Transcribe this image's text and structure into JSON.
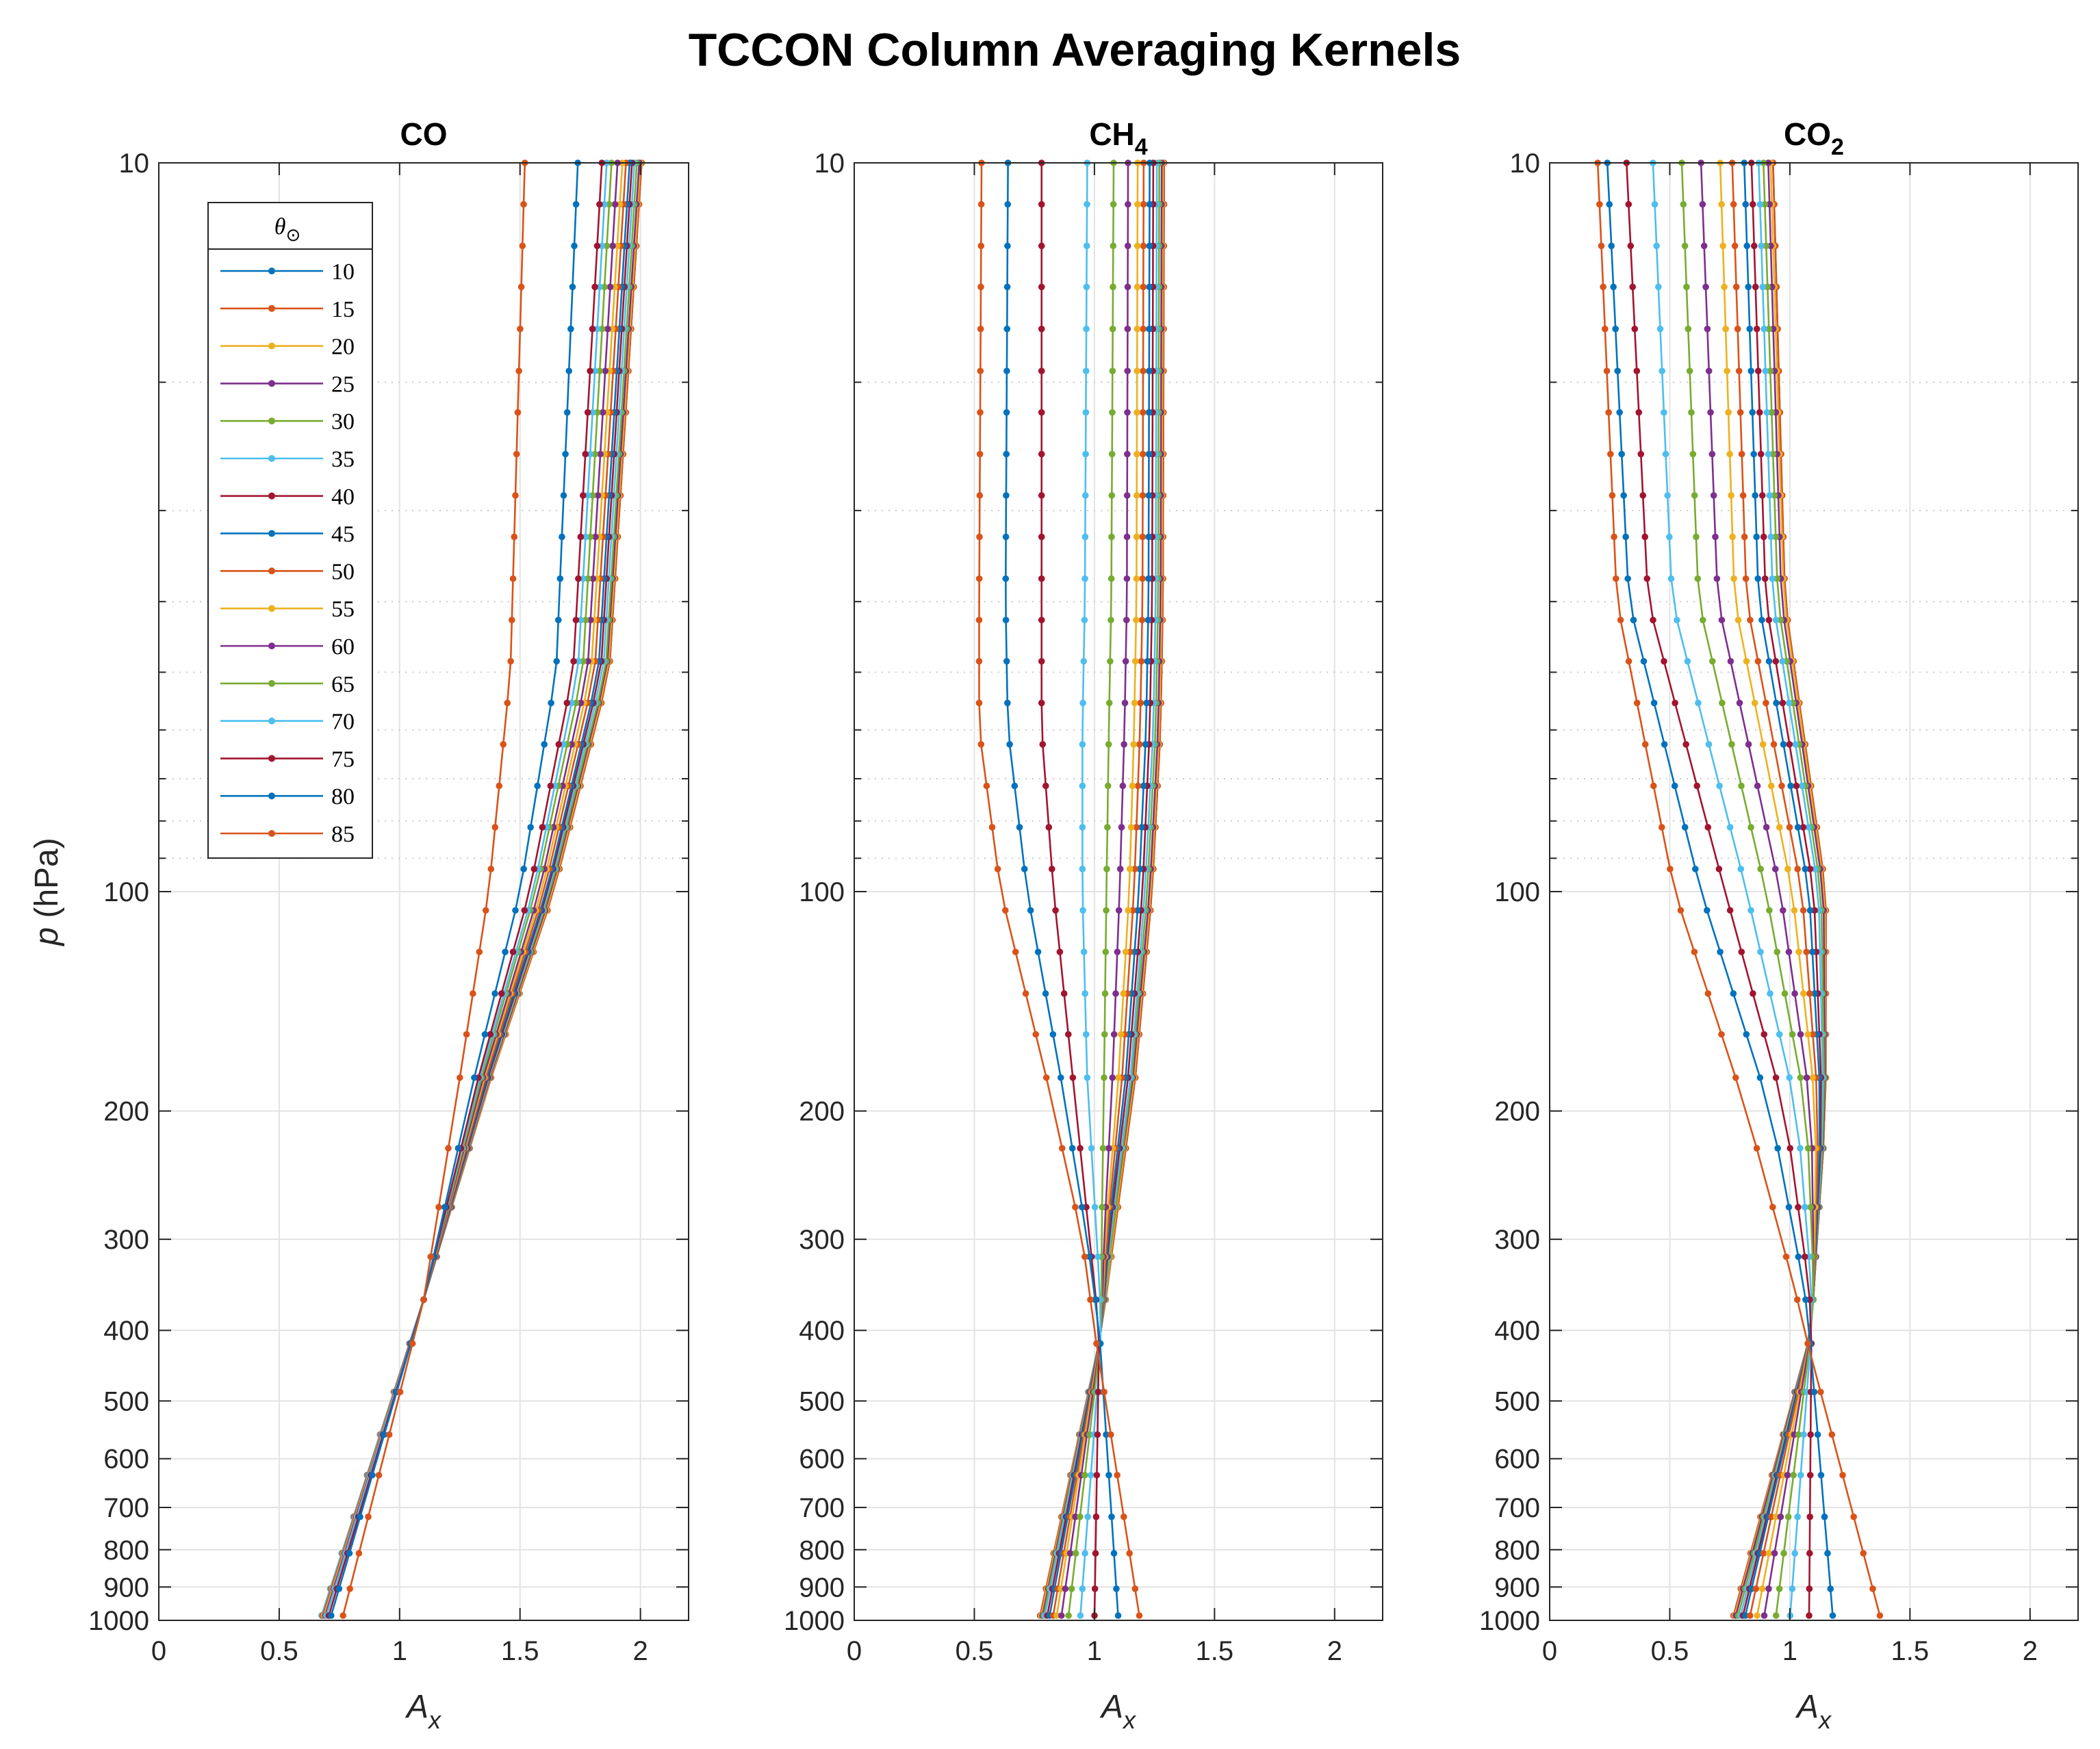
{
  "figure": {
    "title": "TCCON Column Averaging Kernels",
    "ylabel_italic": "p",
    "ylabel_rest": " (hPa)",
    "xlabel_main": "A",
    "xlabel_sub": "x"
  },
  "legend": {
    "title": "θ",
    "title_sub": "⊙"
  },
  "chart_data": [
    {
      "type": "line",
      "title": "CO",
      "xlim": [
        0,
        2.2
      ],
      "ylim": [
        10,
        1000
      ],
      "y_scale": "log-reversed",
      "grid": true,
      "legend_position": "top-left",
      "x_ticks": [
        "0",
        "0.5",
        "1",
        "1.5",
        "2"
      ],
      "y_ticks": [
        "10",
        "100",
        "200",
        "300",
        "400",
        "500",
        "600",
        "700",
        "800",
        "900",
        "1000"
      ],
      "pressure_levels": [
        10,
        11.4,
        13,
        14.8,
        16.9,
        19.3,
        22,
        25.1,
        28.6,
        32.6,
        37.2,
        42.4,
        48.3,
        55.1,
        62.8,
        71.6,
        81.6,
        93.1,
        106.1,
        121,
        138,
        157,
        180,
        225,
        271,
        317,
        363,
        417,
        486,
        556,
        632,
        721,
        809,
        905,
        985
      ],
      "anchors_p": [
        10,
        50,
        100,
        180,
        363,
        1000
      ],
      "series": [
        {
          "name": "10",
          "anchors": [
            2.005,
            1.87,
            1.64,
            1.38,
            1.1,
            0.67
          ]
        },
        {
          "name": "15",
          "anchors": [
            2.005,
            1.87,
            1.64,
            1.38,
            1.1,
            0.67
          ]
        },
        {
          "name": "20",
          "anchors": [
            2.0,
            1.865,
            1.635,
            1.378,
            1.1,
            0.67
          ]
        },
        {
          "name": "25",
          "anchors": [
            1.995,
            1.86,
            1.63,
            1.375,
            1.1,
            0.67
          ]
        },
        {
          "name": "30",
          "anchors": [
            1.985,
            1.855,
            1.625,
            1.372,
            1.1,
            0.67
          ]
        },
        {
          "name": "35",
          "anchors": [
            1.975,
            1.845,
            1.62,
            1.37,
            1.1,
            0.67
          ]
        },
        {
          "name": "40",
          "anchors": [
            1.965,
            1.835,
            1.615,
            1.367,
            1.1,
            0.675
          ]
        },
        {
          "name": "45",
          "anchors": [
            1.955,
            1.825,
            1.61,
            1.362,
            1.1,
            0.675
          ]
        },
        {
          "name": "50",
          "anchors": [
            1.94,
            1.81,
            1.6,
            1.357,
            1.1,
            0.675
          ]
        },
        {
          "name": "55",
          "anchors": [
            1.925,
            1.795,
            1.59,
            1.352,
            1.1,
            0.68
          ]
        },
        {
          "name": "60",
          "anchors": [
            1.905,
            1.78,
            1.58,
            1.347,
            1.1,
            0.685
          ]
        },
        {
          "name": "65",
          "anchors": [
            1.88,
            1.76,
            1.565,
            1.34,
            1.1,
            0.69
          ]
        },
        {
          "name": "70",
          "anchors": [
            1.86,
            1.74,
            1.555,
            1.333,
            1.1,
            0.69
          ]
        },
        {
          "name": "75",
          "anchors": [
            1.84,
            1.72,
            1.54,
            1.327,
            1.1,
            0.7
          ]
        },
        {
          "name": "80",
          "anchors": [
            1.74,
            1.65,
            1.5,
            1.31,
            1.1,
            0.71
          ]
        },
        {
          "name": "85",
          "anchors": [
            1.52,
            1.46,
            1.37,
            1.25,
            1.1,
            0.76
          ]
        }
      ]
    },
    {
      "type": "line",
      "title": "CH",
      "title_sub": "4",
      "xlim": [
        0,
        2.2
      ],
      "ylim": [
        10,
        1000
      ],
      "y_scale": "log-reversed",
      "grid": true,
      "x_ticks": [
        "0",
        "0.5",
        "1",
        "1.5",
        "2"
      ],
      "y_ticks": [
        "10",
        "100",
        "200",
        "300",
        "400",
        "500",
        "600",
        "700",
        "800",
        "900",
        "1000"
      ],
      "pressure_levels": [
        10,
        11.4,
        13,
        14.8,
        16.9,
        19.3,
        22,
        25.1,
        28.6,
        32.6,
        37.2,
        42.4,
        48.3,
        55.1,
        62.8,
        71.6,
        81.6,
        93.1,
        106.1,
        121,
        138,
        157,
        180,
        225,
        271,
        317,
        363,
        417,
        486,
        556,
        632,
        721,
        809,
        905,
        985
      ],
      "anchors_p": [
        10,
        40,
        60,
        100,
        180,
        300,
        400,
        1000
      ],
      "series": [
        {
          "name": "10",
          "anchors": [
            1.29,
            1.285,
            1.275,
            1.24,
            1.17,
            1.08,
            1.03,
            0.77
          ]
        },
        {
          "name": "15",
          "anchors": [
            1.29,
            1.285,
            1.275,
            1.24,
            1.17,
            1.08,
            1.03,
            0.77
          ]
        },
        {
          "name": "20",
          "anchors": [
            1.285,
            1.28,
            1.27,
            1.235,
            1.165,
            1.075,
            1.03,
            0.775
          ]
        },
        {
          "name": "25",
          "anchors": [
            1.28,
            1.275,
            1.265,
            1.23,
            1.16,
            1.07,
            1.03,
            0.78
          ]
        },
        {
          "name": "30",
          "anchors": [
            1.27,
            1.265,
            1.255,
            1.22,
            1.155,
            1.07,
            1.03,
            0.785
          ]
        },
        {
          "name": "35",
          "anchors": [
            1.26,
            1.255,
            1.245,
            1.21,
            1.15,
            1.065,
            1.03,
            0.79
          ]
        },
        {
          "name": "40",
          "anchors": [
            1.245,
            1.24,
            1.23,
            1.2,
            1.14,
            1.06,
            1.03,
            0.8
          ]
        },
        {
          "name": "45",
          "anchors": [
            1.23,
            1.225,
            1.215,
            1.185,
            1.13,
            1.055,
            1.03,
            0.81
          ]
        },
        {
          "name": "50",
          "anchors": [
            1.205,
            1.2,
            1.19,
            1.165,
            1.115,
            1.05,
            1.03,
            0.825
          ]
        },
        {
          "name": "55",
          "anchors": [
            1.18,
            1.175,
            1.165,
            1.145,
            1.1,
            1.045,
            1.03,
            0.84
          ]
        },
        {
          "name": "60",
          "anchors": [
            1.14,
            1.135,
            1.125,
            1.105,
            1.075,
            1.04,
            1.03,
            0.86
          ]
        },
        {
          "name": "65",
          "anchors": [
            1.08,
            1.07,
            1.06,
            1.05,
            1.04,
            1.03,
            1.03,
            0.89
          ]
        },
        {
          "name": "70",
          "anchors": [
            0.97,
            0.96,
            0.95,
            0.95,
            0.97,
            1.01,
            1.03,
            0.94
          ]
        },
        {
          "name": "75",
          "anchors": [
            0.78,
            0.78,
            0.78,
            0.83,
            0.91,
            0.98,
            1.02,
            1.0
          ]
        },
        {
          "name": "80",
          "anchors": [
            0.64,
            0.63,
            0.64,
            0.72,
            0.86,
            0.97,
            1.02,
            1.1
          ]
        },
        {
          "name": "85",
          "anchors": [
            0.53,
            0.52,
            0.52,
            0.61,
            0.8,
            0.95,
            1.0,
            1.19
          ]
        }
      ]
    },
    {
      "type": "line",
      "title": "CO",
      "title_sub": "2",
      "xlim": [
        0,
        2.2
      ],
      "ylim": [
        10,
        1000
      ],
      "y_scale": "log-reversed",
      "grid": true,
      "x_ticks": [
        "0",
        "0.5",
        "1",
        "1.5",
        "2"
      ],
      "y_ticks": [
        "10",
        "100",
        "200",
        "300",
        "400",
        "500",
        "600",
        "700",
        "800",
        "900",
        "1000"
      ],
      "pressure_levels": [
        10,
        11.4,
        13,
        14.8,
        16.9,
        19.3,
        22,
        25.1,
        28.6,
        32.6,
        37.2,
        42.4,
        48.3,
        55.1,
        62.8,
        71.6,
        81.6,
        93.1,
        106.1,
        121,
        138,
        157,
        180,
        225,
        271,
        317,
        363,
        417,
        486,
        556,
        632,
        721,
        809,
        905,
        985
      ],
      "anchors_p": [
        10,
        40,
        100,
        200,
        350,
        400,
        1000
      ],
      "series": [
        {
          "name": "10",
          "anchors": [
            0.93,
            0.98,
            1.15,
            1.15,
            1.1,
            1.09,
            0.76
          ]
        },
        {
          "name": "15",
          "anchors": [
            0.93,
            0.98,
            1.15,
            1.15,
            1.1,
            1.09,
            0.76
          ]
        },
        {
          "name": "20",
          "anchors": [
            0.92,
            0.975,
            1.145,
            1.15,
            1.1,
            1.09,
            0.765
          ]
        },
        {
          "name": "25",
          "anchors": [
            0.91,
            0.965,
            1.14,
            1.148,
            1.1,
            1.09,
            0.77
          ]
        },
        {
          "name": "30",
          "anchors": [
            0.89,
            0.95,
            1.13,
            1.145,
            1.1,
            1.09,
            0.78
          ]
        },
        {
          "name": "35",
          "anchors": [
            0.87,
            0.93,
            1.12,
            1.14,
            1.1,
            1.09,
            0.79
          ]
        },
        {
          "name": "40",
          "anchors": [
            0.84,
            0.9,
            1.1,
            1.135,
            1.1,
            1.09,
            0.8
          ]
        },
        {
          "name": "45",
          "anchors": [
            0.81,
            0.87,
            1.08,
            1.13,
            1.1,
            1.09,
            0.81
          ]
        },
        {
          "name": "50",
          "anchors": [
            0.76,
            0.82,
            1.05,
            1.12,
            1.1,
            1.09,
            0.83
          ]
        },
        {
          "name": "55",
          "anchors": [
            0.71,
            0.77,
            1.01,
            1.11,
            1.1,
            1.09,
            0.86
          ]
        },
        {
          "name": "60",
          "anchors": [
            0.63,
            0.7,
            0.96,
            1.09,
            1.1,
            1.09,
            0.89
          ]
        },
        {
          "name": "65",
          "anchors": [
            0.55,
            0.62,
            0.9,
            1.07,
            1.1,
            1.09,
            0.94
          ]
        },
        {
          "name": "70",
          "anchors": [
            0.43,
            0.51,
            0.82,
            1.03,
            1.09,
            1.09,
            1.0
          ]
        },
        {
          "name": "75",
          "anchors": [
            0.32,
            0.41,
            0.73,
            0.98,
            1.08,
            1.09,
            1.08
          ]
        },
        {
          "name": "80",
          "anchors": [
            0.24,
            0.33,
            0.63,
            0.92,
            1.06,
            1.08,
            1.18
          ]
        },
        {
          "name": "85",
          "anchors": [
            0.2,
            0.28,
            0.52,
            0.82,
            1.02,
            1.06,
            1.38
          ]
        }
      ]
    }
  ],
  "series_colors": [
    "#0072BD",
    "#D95319",
    "#EDB120",
    "#7E2F8E",
    "#77AC30",
    "#4DBEEE",
    "#A2142F",
    "#0072BD",
    "#D95319",
    "#EDB120",
    "#7E2F8E",
    "#77AC30",
    "#4DBEEE",
    "#A2142F",
    "#0072BD",
    "#D95319"
  ]
}
